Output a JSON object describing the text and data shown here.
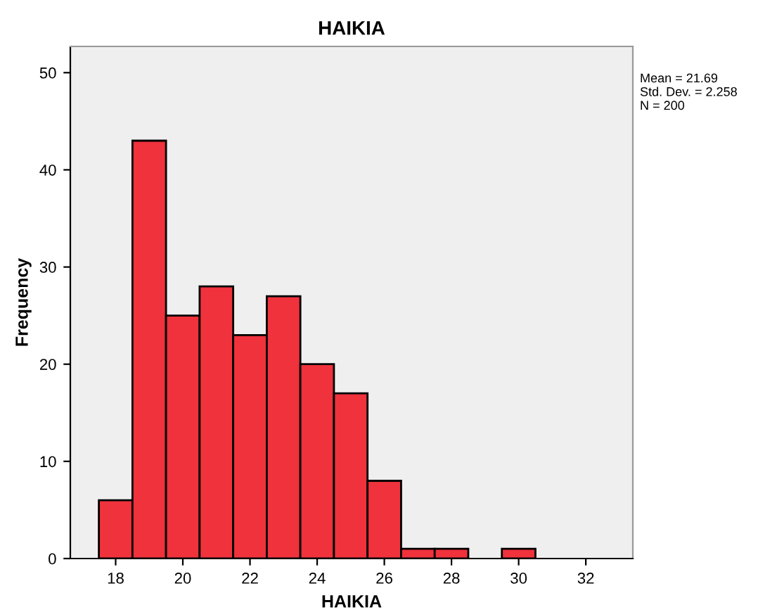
{
  "chart_data": {
    "type": "histogram",
    "title": "HAIKIA",
    "xlabel": "HAIKIA",
    "ylabel": "Frequency",
    "bins": [
      17.5,
      18.5,
      19.5,
      20.5,
      21.5,
      22.5,
      23.5,
      24.5,
      25.5,
      26.5,
      27.5,
      28.5,
      29.5,
      30.5
    ],
    "values": [
      6,
      43,
      25,
      28,
      23,
      27,
      20,
      17,
      8,
      1,
      1,
      0,
      1
    ],
    "color": "#ef323c",
    "xlim": [
      16.65,
      33.4
    ],
    "xticks": [
      18,
      20,
      22,
      24,
      26,
      28,
      30,
      32
    ],
    "ylim": [
      0,
      52.7
    ],
    "yticks": [
      0,
      10,
      20,
      30,
      40,
      50
    ],
    "grid": false,
    "annotations": [
      "Mean = 21.69\nStd. Dev. = 2.258\nN = 200"
    ]
  }
}
